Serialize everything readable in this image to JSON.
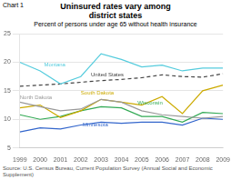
{
  "chart_data": {
    "type": "line",
    "title": "Uninsured rates vary among\ndistrict states",
    "subtitle": "Percent of persons under age 65 without health insurance",
    "chart_label": "Chart 1",
    "source": "Source: U.S. Census Bureau, Current Population Survey (Annual Social and Economic Supplement)",
    "x": [
      1999,
      2000,
      2001,
      2002,
      2003,
      2004,
      2005,
      2006,
      2007,
      2008,
      2009
    ],
    "series": [
      {
        "name": "Montana",
        "color": "#55ccdd",
        "line_style": "solid",
        "values": [
          20.0,
          18.5,
          16.2,
          17.5,
          21.5,
          20.5,
          19.2,
          19.5,
          18.5,
          19.0,
          19.0
        ]
      },
      {
        "name": "United States",
        "color": "#444444",
        "line_style": "dashed",
        "values": [
          15.8,
          16.0,
          16.2,
          16.5,
          16.8,
          17.0,
          17.3,
          17.8,
          17.5,
          17.4,
          18.0
        ]
      },
      {
        "name": "North Dakota",
        "color": "#999999",
        "line_style": "solid",
        "values": [
          13.0,
          12.2,
          11.5,
          11.8,
          13.5,
          13.0,
          11.5,
          10.8,
          10.5,
          10.2,
          10.5
        ]
      },
      {
        "name": "South Dakota",
        "color": "#ccaa00",
        "line_style": "solid",
        "values": [
          12.0,
          12.5,
          10.3,
          11.5,
          13.5,
          13.0,
          12.5,
          14.0,
          11.0,
          15.0,
          16.0
        ]
      },
      {
        "name": "Wisconsin",
        "color": "#33aa55",
        "line_style": "solid",
        "values": [
          10.8,
          10.0,
          10.5,
          11.5,
          12.2,
          12.0,
          10.5,
          10.5,
          9.5,
          11.2,
          11.0
        ]
      },
      {
        "name": "Minnesota",
        "color": "#3366cc",
        "line_style": "solid",
        "values": [
          7.8,
          8.5,
          8.3,
          9.0,
          9.5,
          9.3,
          9.5,
          9.5,
          9.0,
          10.2,
          10.0
        ]
      }
    ],
    "annotations": [
      {
        "text": "Montana",
        "x": 2000.2,
        "y": 19.1,
        "color": "#55ccdd"
      },
      {
        "text": "United States",
        "x": 2002.5,
        "y": 17.3,
        "color": "#444444"
      },
      {
        "text": "North Dakota",
        "x": 1999.0,
        "y": 13.4,
        "color": "#999999"
      },
      {
        "text": "South Dakota",
        "x": 2002.0,
        "y": 14.2,
        "color": "#ccaa00"
      },
      {
        "text": "Wisconsin",
        "x": 2004.8,
        "y": 12.4,
        "color": "#33aa55"
      },
      {
        "text": "Minnesota",
        "x": 2002.1,
        "y": 8.6,
        "color": "#3366cc"
      }
    ],
    "xlim": [
      1999,
      2009
    ],
    "xticks": [
      1999,
      2000,
      2001,
      2002,
      2003,
      2004,
      2005,
      2006,
      2007,
      2008,
      2009
    ],
    "ylim": [
      5,
      25
    ],
    "yticks": [
      5,
      10,
      15,
      20,
      25
    ],
    "grid": "y"
  }
}
